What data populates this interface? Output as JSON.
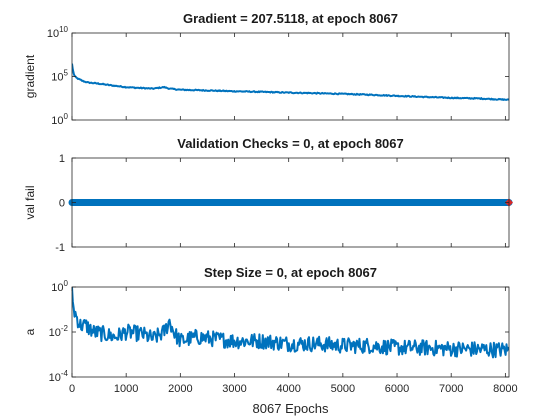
{
  "chart_data": [
    {
      "type": "line",
      "title": "Gradient = 207.5118, at epoch 8067",
      "ylabel": "gradient",
      "xlabel": "",
      "yscale": "log",
      "xlim": [
        0,
        8067
      ],
      "ylim": [
        1,
        10000000000
      ],
      "xticks": [
        0,
        1000,
        2000,
        3000,
        4000,
        5000,
        6000,
        7000,
        8000
      ],
      "yticks": [
        {
          "value": 1,
          "base": "10",
          "exp": "0"
        },
        {
          "value": 100000,
          "base": "10",
          "exp": "5"
        },
        {
          "value": 10000000000,
          "base": "10",
          "exp": "10"
        }
      ],
      "show_xtick_labels": false,
      "color": "#0072bd",
      "x": [
        0,
        20,
        50,
        100,
        200,
        300,
        500,
        700,
        1000,
        1200,
        1500,
        1600,
        1700,
        1800,
        2000,
        2500,
        3000,
        3500,
        4000,
        4500,
        5000,
        5500,
        6000,
        6500,
        7000,
        7500,
        8067
      ],
      "y": [
        3000000,
        400000,
        100000,
        60000,
        30000,
        20000,
        15000,
        10000,
        6000,
        5000,
        4000,
        5000,
        6000,
        4000,
        3000,
        2500,
        2000,
        1700,
        1400,
        1200,
        1000,
        800,
        600,
        450,
        350,
        300,
        207.5118
      ]
    },
    {
      "type": "scatter",
      "title": "Validation Checks = 0, at epoch 8067",
      "ylabel": "val fail",
      "xlabel": "",
      "yscale": "linear",
      "xlim": [
        0,
        8067
      ],
      "ylim": [
        -1,
        1
      ],
      "xticks": [
        0,
        1000,
        2000,
        3000,
        4000,
        5000,
        6000,
        7000,
        8000
      ],
      "yticks": [
        {
          "value": -1,
          "label": "-1"
        },
        {
          "value": 0,
          "label": "0"
        },
        {
          "value": 1,
          "label": "1"
        }
      ],
      "show_xtick_labels": false,
      "color": "#0072bd",
      "highlight_color": "#d62728",
      "x_start": 0,
      "x_end": 8067,
      "value": 0
    },
    {
      "type": "line",
      "title": "Step Size = 0, at epoch 8067",
      "ylabel": "a",
      "xlabel": "8067 Epochs",
      "yscale": "log",
      "xlim": [
        0,
        8067
      ],
      "ylim": [
        0.0001,
        1
      ],
      "xticks": [
        0,
        1000,
        2000,
        3000,
        4000,
        5000,
        6000,
        7000,
        8000
      ],
      "yticks": [
        {
          "value": 0.0001,
          "base": "10",
          "exp": "-4"
        },
        {
          "value": 0.01,
          "base": "10",
          "exp": "-2"
        },
        {
          "value": 1,
          "base": "10",
          "exp": "0"
        }
      ],
      "show_xtick_labels": true,
      "color": "#0072bd",
      "x": [
        0,
        30,
        80,
        150,
        250,
        400,
        600,
        800,
        1000,
        1300,
        1500,
        1700,
        1800,
        1900,
        2000,
        2300,
        2600,
        3000,
        3500,
        4000,
        4500,
        5000,
        5500,
        6000,
        6500,
        7000,
        7500,
        8067
      ],
      "y": [
        1,
        0.1,
        0.05,
        0.02,
        0.02,
        0.01,
        0.008,
        0.006,
        0.01,
        0.008,
        0.005,
        0.01,
        0.03,
        0.008,
        0.004,
        0.006,
        0.005,
        0.004,
        0.004,
        0.003,
        0.003,
        0.0025,
        0.0025,
        0.002,
        0.002,
        0.0018,
        0.0017,
        0.0016
      ]
    }
  ]
}
